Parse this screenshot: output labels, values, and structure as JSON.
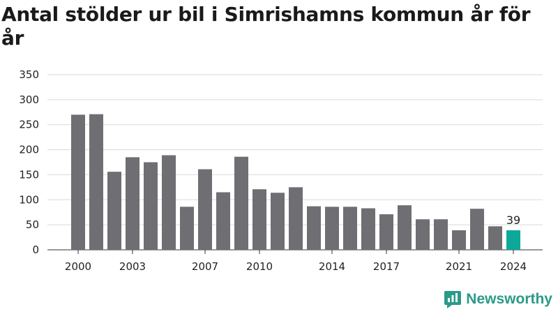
{
  "chart_data": {
    "type": "bar",
    "title": "Antal stölder ur bil i Simrishamns kommun år för år",
    "xlabel": "",
    "ylabel": "",
    "ylim": [
      0,
      350
    ],
    "yticks": [
      0,
      50,
      100,
      150,
      200,
      250,
      300,
      350
    ],
    "categories": [
      2000,
      2001,
      2002,
      2003,
      2004,
      2005,
      2006,
      2007,
      2008,
      2009,
      2010,
      2011,
      2012,
      2013,
      2014,
      2015,
      2016,
      2017,
      2018,
      2019,
      2020,
      2021,
      2022,
      2023,
      2024
    ],
    "xticks": [
      2000,
      2003,
      2007,
      2010,
      2014,
      2017,
      2021,
      2024
    ],
    "values": [
      270,
      271,
      156,
      185,
      175,
      189,
      86,
      161,
      115,
      186,
      121,
      114,
      125,
      87,
      86,
      86,
      83,
      71,
      89,
      61,
      61,
      39,
      82,
      47,
      39
    ],
    "highlight": {
      "category": 2024,
      "label": "39"
    },
    "grid": true,
    "colors": {
      "bar": "#6f6e73",
      "highlight": "#0da899",
      "grid": "#d9d9d9"
    }
  },
  "branding": {
    "logo_text": "Newsworthy"
  }
}
